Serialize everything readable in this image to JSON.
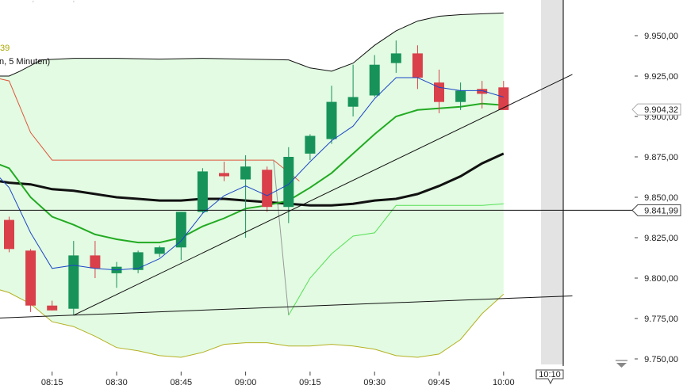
{
  "legend": {
    "line0": "— — — ,—— — — ,——",
    "line1": "39",
    "line2": "n, 5 Minuten)"
  },
  "cursor": {
    "time_label": "10:10",
    "price_label": "9.841,99",
    "price": 9841.99
  },
  "last_price": {
    "label": "9.904,32",
    "value": 9904.32
  },
  "colors": {
    "bull": "#17935a",
    "bear": "#d9404a",
    "band_fill": "#e2fbe2",
    "upper_band": "#111111",
    "lower_band": "#b5b022",
    "ma_fast": "#1d46c8",
    "ma_mid": "#22aa22",
    "ma_slow": "#111111",
    "red_line": "#e0553b",
    "light_green": "#55e055",
    "gray_line": "#999999"
  },
  "chart_data": {
    "type": "candlestick",
    "ylim": [
      9750,
      9963
    ],
    "y_ticks": [
      {
        "value": 9950,
        "label": "9.950,00"
      },
      {
        "value": 9925,
        "label": "9.925,00"
      },
      {
        "value": 9900,
        "label": "9.900,00"
      },
      {
        "value": 9875,
        "label": "9.875,00"
      },
      {
        "value": 9850,
        "label": "9.850,00"
      },
      {
        "value": 9825,
        "label": "9.825,00"
      },
      {
        "value": 9800,
        "label": "9.800,00"
      },
      {
        "value": 9775,
        "label": "9.775,00"
      },
      {
        "value": 9750,
        "label": "9.750,00"
      }
    ],
    "x_ticks": [
      {
        "idx": 2,
        "label": "08:15"
      },
      {
        "idx": 5,
        "label": "08:30"
      },
      {
        "idx": 8,
        "label": "08:45"
      },
      {
        "idx": 11,
        "label": "09:00"
      },
      {
        "idx": 14,
        "label": "09:15"
      },
      {
        "idx": 17,
        "label": "09:30"
      },
      {
        "idx": 20,
        "label": "09:45"
      },
      {
        "idx": 23,
        "label": "10:00"
      }
    ],
    "candles": [
      {
        "idx": 0,
        "open": 9836,
        "high": 9838,
        "low": 9816,
        "close": 9818
      },
      {
        "idx": 1,
        "open": 9817,
        "high": 9818,
        "low": 9779,
        "close": 9783
      },
      {
        "idx": 2,
        "open": 9783,
        "high": 9786,
        "low": 9780,
        "close": 9780
      },
      {
        "idx": 3,
        "open": 9781,
        "high": 9823,
        "low": 9777,
        "close": 9814
      },
      {
        "idx": 4,
        "open": 9814,
        "high": 9823,
        "low": 9800,
        "close": 9806
      },
      {
        "idx": 5,
        "open": 9803,
        "high": 9810,
        "low": 9794,
        "close": 9807
      },
      {
        "idx": 6,
        "open": 9805,
        "high": 9817,
        "low": 9803,
        "close": 9816
      },
      {
        "idx": 7,
        "open": 9815,
        "high": 9820,
        "low": 9813,
        "close": 9819
      },
      {
        "idx": 8,
        "open": 9819,
        "high": 9841,
        "low": 9811,
        "close": 9841
      },
      {
        "idx": 9,
        "open": 9841,
        "high": 9868,
        "low": 9840,
        "close": 9866
      },
      {
        "idx": 10,
        "open": 9865,
        "high": 9872,
        "low": 9860,
        "close": 9863
      },
      {
        "idx": 11,
        "open": 9861,
        "high": 9876,
        "low": 9825,
        "close": 9869
      },
      {
        "idx": 12,
        "open": 9867,
        "high": 9869,
        "low": 9841,
        "close": 9844
      },
      {
        "idx": 13,
        "open": 9844,
        "high": 9881,
        "low": 9834,
        "close": 9875
      },
      {
        "idx": 14,
        "open": 9877,
        "high": 9889,
        "low": 9873,
        "close": 9888
      },
      {
        "idx": 15,
        "open": 9886,
        "high": 9919,
        "low": 9883,
        "close": 9909
      },
      {
        "idx": 16,
        "open": 9906,
        "high": 9932,
        "low": 9900,
        "close": 9912
      },
      {
        "idx": 17,
        "open": 9913,
        "high": 9938,
        "low": 9912,
        "close": 9932
      },
      {
        "idx": 18,
        "open": 9933,
        "high": 9947,
        "low": 9927,
        "close": 9939
      },
      {
        "idx": 19,
        "open": 9939,
        "high": 9944,
        "low": 9917,
        "close": 9924
      },
      {
        "idx": 20,
        "open": 9921,
        "high": 9929,
        "low": 9902,
        "close": 9909
      },
      {
        "idx": 21,
        "open": 9909,
        "high": 9921,
        "low": 9904,
        "close": 9916
      },
      {
        "idx": 22,
        "open": 9917,
        "high": 9922,
        "low": 9905,
        "close": 9914
      },
      {
        "idx": 23,
        "open": 9918,
        "high": 9922,
        "low": 9904,
        "close": 9904
      }
    ],
    "upper_band": [
      [
        -1,
        9925
      ],
      [
        0,
        9925
      ],
      [
        0.5,
        9928
      ],
      [
        1.5,
        9935
      ],
      [
        3,
        9936
      ],
      [
        5,
        9936
      ],
      [
        7,
        9935.5
      ],
      [
        9,
        9936
      ],
      [
        11,
        9935.5
      ],
      [
        13,
        9935
      ],
      [
        14,
        9930
      ],
      [
        15,
        9928
      ],
      [
        16,
        9933
      ],
      [
        17,
        9944
      ],
      [
        18,
        9953
      ],
      [
        19,
        9959
      ],
      [
        20,
        9962
      ],
      [
        21,
        9963
      ],
      [
        23,
        9964
      ]
    ],
    "lower_band": [
      [
        -1,
        9795
      ],
      [
        0,
        9791
      ],
      [
        1,
        9784
      ],
      [
        2,
        9773
      ],
      [
        3,
        9770
      ],
      [
        4,
        9764
      ],
      [
        5,
        9757
      ],
      [
        6,
        9755
      ],
      [
        7,
        9752
      ],
      [
        8,
        9751
      ],
      [
        9,
        9754
      ],
      [
        10,
        9759
      ],
      [
        11,
        9760
      ],
      [
        12,
        9760
      ],
      [
        13,
        9758
      ],
      [
        14,
        9758
      ],
      [
        15,
        9759
      ],
      [
        16,
        9758
      ],
      [
        17,
        9756
      ],
      [
        18,
        9752
      ],
      [
        19,
        9751
      ],
      [
        20,
        9753
      ],
      [
        21,
        9762
      ],
      [
        22,
        9778
      ],
      [
        23,
        9790
      ]
    ],
    "ma_fast": [
      [
        -1,
        9870
      ],
      [
        0,
        9856
      ],
      [
        1,
        9828
      ],
      [
        2,
        9806
      ],
      [
        3,
        9808
      ],
      [
        4,
        9806
      ],
      [
        5,
        9805
      ],
      [
        6,
        9806
      ],
      [
        7,
        9812
      ],
      [
        8,
        9823
      ],
      [
        9,
        9840
      ],
      [
        10,
        9851
      ],
      [
        11,
        9857
      ],
      [
        12,
        9851
      ],
      [
        13,
        9858
      ],
      [
        14,
        9872
      ],
      [
        15,
        9885
      ],
      [
        16,
        9894
      ],
      [
        17,
        9911
      ],
      [
        18,
        9924
      ],
      [
        19,
        9924
      ],
      [
        20,
        9918
      ],
      [
        21,
        9916
      ],
      [
        22,
        9916
      ],
      [
        23,
        9912
      ]
    ],
    "ma_mid": [
      [
        -1,
        9873
      ],
      [
        0,
        9868
      ],
      [
        1,
        9850
      ],
      [
        2,
        9838
      ],
      [
        3,
        9833
      ],
      [
        4,
        9827
      ],
      [
        5,
        9824
      ],
      [
        6,
        9822
      ],
      [
        7,
        9822
      ],
      [
        8,
        9825
      ],
      [
        9,
        9832
      ],
      [
        10,
        9837
      ],
      [
        11,
        9843
      ],
      [
        12,
        9845
      ],
      [
        13,
        9848
      ],
      [
        14,
        9856
      ],
      [
        15,
        9865
      ],
      [
        16,
        9877
      ],
      [
        17,
        9889
      ],
      [
        18,
        9900
      ],
      [
        19,
        9904
      ],
      [
        20,
        9905
      ],
      [
        21,
        9906
      ],
      [
        22,
        9908
      ],
      [
        23,
        9907
      ]
    ],
    "ma_slow": [
      [
        -1,
        9861
      ],
      [
        0,
        9859
      ],
      [
        1,
        9858
      ],
      [
        2,
        9855
      ],
      [
        3,
        9854
      ],
      [
        4,
        9852
      ],
      [
        5,
        9850
      ],
      [
        6,
        9849
      ],
      [
        7,
        9848
      ],
      [
        8,
        9848
      ],
      [
        9,
        9849
      ],
      [
        10,
        9849
      ],
      [
        11,
        9848
      ],
      [
        12,
        9847
      ],
      [
        13,
        9846
      ],
      [
        14,
        9845
      ],
      [
        15,
        9845
      ],
      [
        16,
        9846
      ],
      [
        17,
        9848
      ],
      [
        18,
        9849
      ],
      [
        19,
        9852
      ],
      [
        20,
        9857
      ],
      [
        21,
        9863
      ],
      [
        22,
        9871
      ],
      [
        23,
        9877
      ]
    ],
    "red_line": [
      [
        -1,
        9925
      ],
      [
        0,
        9922
      ],
      [
        1,
        9890
      ],
      [
        2,
        9873
      ],
      [
        12.3,
        9873
      ],
      [
        13.5,
        9860
      ]
    ],
    "gray_line": [
      [
        12.3,
        9873
      ],
      [
        13,
        9777
      ]
    ],
    "light_green": [
      [
        13,
        9777
      ],
      [
        14,
        9800
      ],
      [
        15,
        9815
      ],
      [
        16,
        9826
      ],
      [
        17,
        9828
      ],
      [
        18,
        9845
      ],
      [
        19,
        9845
      ],
      [
        20,
        9845
      ],
      [
        21,
        9845
      ],
      [
        22,
        9845
      ],
      [
        23,
        9846
      ]
    ],
    "trendlines": [
      {
        "from": [
          3,
          9777
        ],
        "to": [
          26.2,
          9926
        ]
      },
      {
        "from": [
          -1,
          9775
        ],
        "to": [
          26.2,
          9789
        ]
      }
    ]
  }
}
